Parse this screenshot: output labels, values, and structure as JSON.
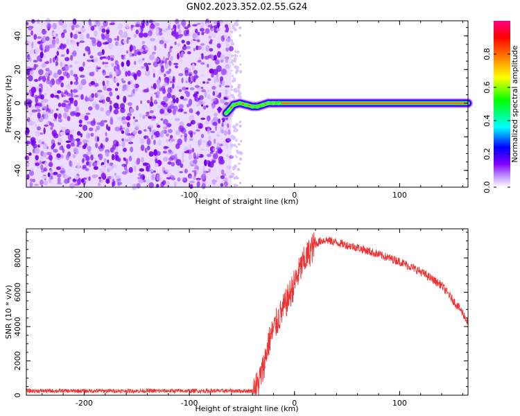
{
  "title": "GN02.2023.352.02.55.G24",
  "chart_data": [
    {
      "type": "heatmap",
      "xlabel": "Height of straight line (km)",
      "ylabel": "Frequency (Hz)",
      "xlim": [
        -255,
        165
      ],
      "ylim": [
        -50,
        49
      ],
      "x_ticks": [
        -200,
        -100,
        0,
        100
      ],
      "x_tick_labels": [
        "-200",
        "-100",
        "0",
        "100"
      ],
      "y_ticks": [
        -40,
        -20,
        0,
        20,
        40
      ],
      "y_tick_labels": [
        "-40",
        "-20",
        "0",
        "20",
        "40"
      ],
      "colorbar": {
        "label": "Normalized spectral amplitude",
        "range": [
          0,
          1
        ],
        "ticks": [
          0.0,
          0.2,
          0.4,
          0.6,
          0.8
        ],
        "tick_labels": [
          "0.0",
          "0.2",
          "0.4",
          "0.6",
          "0.8"
        ],
        "colors": [
          "#ffffff",
          "#7f00ff",
          "#0000ff",
          "#00ffff",
          "#00ff00",
          "#ffff00",
          "#ff8000",
          "#ff0000",
          "#ff0080"
        ]
      },
      "noise_region_x": [
        -255,
        -60
      ],
      "signal_line": {
        "x": [
          -65,
          -62,
          -58,
          -52,
          -46,
          -40,
          -35,
          -30,
          -25,
          -20,
          -15,
          0,
          20,
          60,
          100,
          165
        ],
        "frequency": [
          -6,
          -4,
          -1,
          0,
          -1,
          -2,
          -2,
          -1,
          0,
          0,
          0,
          0,
          0,
          0,
          0,
          0
        ]
      },
      "grid": false
    },
    {
      "type": "line",
      "xlabel": "Height of straight line (km)",
      "ylabel": "SNR (10 * v/v)",
      "xlim": [
        -255,
        165
      ],
      "ylim": [
        0,
        9700
      ],
      "x_ticks": [
        -200,
        -100,
        0,
        100
      ],
      "x_tick_labels": [
        "-200",
        "-100",
        "0",
        "100"
      ],
      "y_ticks": [
        0,
        2000,
        4000,
        6000,
        8000
      ],
      "y_tick_labels": [
        "0",
        "2000",
        "4000",
        "6000",
        "8000"
      ],
      "line_color": "#ee3333",
      "series": [
        {
          "x": [
            -255,
            -200,
            -100,
            -40,
            -35,
            -30,
            -25,
            -20,
            -15,
            -10,
            -5,
            0,
            5,
            10,
            15,
            20,
            25,
            30,
            40,
            60,
            80,
            100,
            120,
            140,
            150,
            160,
            165
          ],
          "values": [
            250,
            250,
            250,
            250,
            600,
            1500,
            3000,
            3800,
            4500,
            5100,
            5800,
            6500,
            7300,
            7900,
            8400,
            8800,
            9000,
            9050,
            8900,
            8600,
            8200,
            7800,
            7200,
            6400,
            5600,
            4800,
            4200
          ]
        }
      ],
      "grid": false
    }
  ]
}
